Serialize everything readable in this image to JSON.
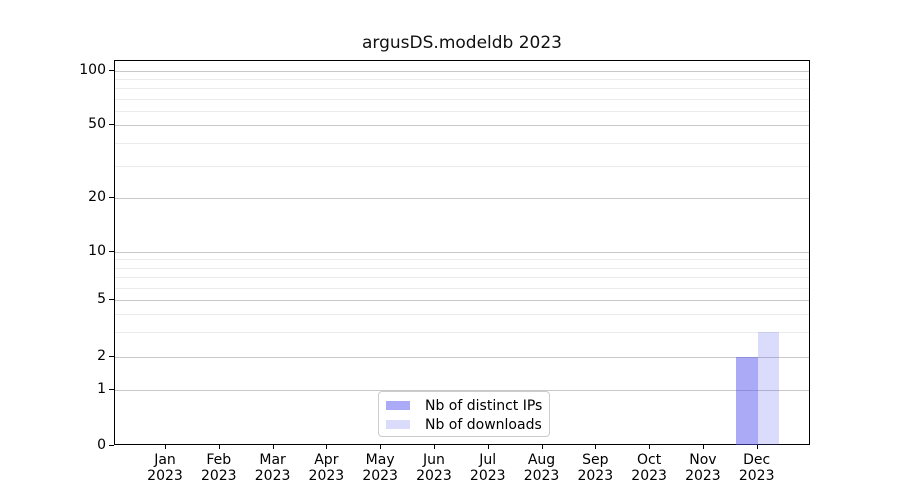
{
  "chart_data": {
    "type": "bar",
    "title": "argusDS.modeldb 2023",
    "x_months": [
      "Jan",
      "Feb",
      "Mar",
      "Apr",
      "May",
      "Jun",
      "Jul",
      "Aug",
      "Sep",
      "Oct",
      "Nov",
      "Dec"
    ],
    "x_year": "2023",
    "series": [
      {
        "name": "Nb of distinct IPs",
        "color": "rgba(85,85,238,0.5)",
        "values": [
          0,
          0,
          0,
          0,
          0,
          0,
          0,
          0,
          0,
          0,
          0,
          2
        ]
      },
      {
        "name": "Nb of downloads",
        "color": "rgba(85,85,238,0.21)",
        "values": [
          0,
          0,
          0,
          0,
          0,
          0,
          0,
          0,
          0,
          0,
          0,
          3
        ]
      }
    ],
    "y_axis": {
      "scale": "log-like with linear 0-1 segment",
      "major_ticks": [
        0,
        1,
        2,
        5,
        10,
        20,
        50,
        100
      ],
      "minor_gridlines": [
        3,
        4,
        6,
        7,
        8,
        9,
        30,
        40,
        60,
        70,
        80,
        90
      ],
      "ylim": [
        0,
        114
      ]
    },
    "grid": {
      "horizontal_major": true,
      "horizontal_minor": true,
      "vertical": false
    },
    "legend": {
      "position": "lower center inside plot",
      "entries": [
        "Nb of distinct IPs",
        "Nb of downloads"
      ]
    }
  }
}
